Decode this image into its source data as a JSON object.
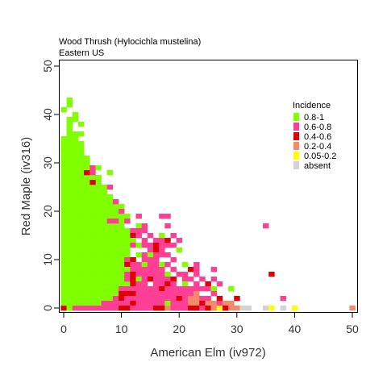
{
  "chart_data": {
    "type": "heatmap",
    "title": "Wood Thrush  (Hylocichla mustelina)",
    "subtitle": "Eastern US",
    "xlabel": "American Elm (iv972)",
    "ylabel": "Red Maple (iv316)",
    "xlim": [
      0,
      50
    ],
    "ylim": [
      0,
      50
    ],
    "x_ticks": [
      0,
      10,
      20,
      30,
      40,
      50
    ],
    "y_ticks": [
      0,
      10,
      20,
      30,
      40,
      50
    ],
    "grid": false,
    "legend": {
      "title": "Incidence",
      "placement": "top-right",
      "entries": [
        {
          "label": "0.8-1",
          "color": "#7FFF00"
        },
        {
          "label": "0.6-0.8",
          "color": "#FF3E96"
        },
        {
          "label": "0.4-0.6",
          "color": "#E00000"
        },
        {
          "label": "0.2-0.4",
          "color": "#F58A6B"
        },
        {
          "label": "0.05-0.2",
          "color": "#FFFF00"
        },
        {
          "label": "absent",
          "color": "#D3D3D3"
        }
      ]
    },
    "cells": [
      [
        1,
        43,
        0
      ],
      [
        1,
        42,
        0
      ],
      [
        0,
        41,
        0
      ],
      [
        2,
        40,
        0
      ],
      [
        2,
        39,
        0
      ],
      [
        3,
        38,
        0
      ],
      [
        1,
        37,
        0
      ],
      [
        0,
        35,
        0
      ],
      [
        1,
        35,
        0
      ],
      [
        2,
        35,
        0
      ],
      [
        3,
        36,
        0
      ],
      [
        0,
        34,
        0
      ],
      [
        1,
        34,
        0
      ],
      [
        2,
        34,
        0
      ],
      [
        0,
        33,
        0
      ],
      [
        1,
        33,
        0
      ],
      [
        2,
        32,
        0
      ],
      [
        3,
        32,
        0
      ],
      [
        0,
        31,
        0
      ],
      [
        1,
        31,
        0
      ],
      [
        2,
        31,
        0
      ],
      [
        3,
        31,
        0
      ],
      [
        4,
        31,
        0
      ],
      [
        5,
        29,
        1
      ],
      [
        6,
        29,
        0
      ],
      [
        4,
        28,
        2
      ],
      [
        5,
        28,
        1
      ],
      [
        8,
        28,
        0
      ],
      [
        6,
        27,
        0
      ],
      [
        5,
        26,
        2
      ],
      [
        8,
        25,
        1
      ],
      [
        4,
        24,
        0
      ],
      [
        5,
        24,
        0
      ],
      [
        6,
        24,
        0
      ],
      [
        7,
        24,
        0
      ],
      [
        8,
        23,
        0
      ],
      [
        9,
        22,
        1
      ],
      [
        10,
        21,
        0
      ],
      [
        10,
        20,
        1
      ],
      [
        11,
        19,
        0
      ],
      [
        13,
        19,
        1
      ],
      [
        17,
        19,
        1
      ],
      [
        18,
        19,
        1
      ],
      [
        8,
        18,
        1
      ],
      [
        9,
        18,
        1
      ],
      [
        11,
        18,
        1
      ],
      [
        13,
        17,
        0
      ],
      [
        14,
        17,
        1
      ],
      [
        18,
        17,
        1
      ],
      [
        35,
        17,
        1
      ],
      [
        12,
        16,
        1
      ],
      [
        13,
        16,
        1
      ],
      [
        14,
        16,
        1
      ],
      [
        12,
        15,
        2
      ],
      [
        13,
        15,
        1
      ],
      [
        15,
        15,
        1
      ],
      [
        17,
        15,
        0
      ],
      [
        19,
        15,
        1
      ],
      [
        12,
        14,
        0
      ],
      [
        14,
        14,
        1
      ],
      [
        16,
        14,
        1
      ],
      [
        17,
        14,
        1
      ],
      [
        18,
        14,
        2
      ],
      [
        20,
        14,
        1
      ],
      [
        12,
        13,
        1
      ],
      [
        13,
        13,
        0
      ],
      [
        14,
        13,
        1
      ],
      [
        15,
        13,
        1
      ],
      [
        16,
        13,
        2
      ],
      [
        17,
        13,
        1
      ],
      [
        18,
        13,
        1
      ],
      [
        19,
        13,
        1
      ],
      [
        15,
        12,
        1
      ],
      [
        16,
        12,
        2
      ],
      [
        17,
        12,
        1
      ],
      [
        20,
        12,
        0
      ],
      [
        13,
        11,
        0
      ],
      [
        14,
        11,
        1
      ],
      [
        15,
        11,
        0
      ],
      [
        16,
        11,
        1
      ],
      [
        17,
        11,
        1
      ],
      [
        18,
        11,
        1
      ],
      [
        11,
        10,
        1
      ],
      [
        12,
        10,
        2
      ],
      [
        14,
        10,
        1
      ],
      [
        15,
        10,
        1
      ],
      [
        16,
        10,
        1
      ],
      [
        19,
        10,
        1
      ],
      [
        11,
        9,
        2
      ],
      [
        12,
        9,
        1
      ],
      [
        13,
        9,
        1
      ],
      [
        14,
        9,
        0
      ],
      [
        15,
        9,
        1
      ],
      [
        16,
        9,
        1
      ],
      [
        17,
        9,
        0
      ],
      [
        18,
        9,
        1
      ],
      [
        21,
        9,
        0
      ],
      [
        23,
        9,
        1
      ],
      [
        11,
        8,
        0
      ],
      [
        12,
        8,
        1
      ],
      [
        13,
        8,
        1
      ],
      [
        14,
        8,
        1
      ],
      [
        15,
        8,
        1
      ],
      [
        16,
        8,
        1
      ],
      [
        17,
        8,
        1
      ],
      [
        19,
        8,
        1
      ],
      [
        22,
        8,
        2
      ],
      [
        23,
        8,
        1
      ],
      [
        26,
        8,
        1
      ],
      [
        11,
        7,
        1
      ],
      [
        12,
        7,
        2
      ],
      [
        13,
        7,
        1
      ],
      [
        14,
        7,
        1
      ],
      [
        15,
        7,
        1
      ],
      [
        16,
        7,
        1
      ],
      [
        17,
        7,
        1
      ],
      [
        18,
        7,
        0
      ],
      [
        20,
        7,
        1
      ],
      [
        21,
        7,
        1
      ],
      [
        23,
        7,
        1
      ],
      [
        36,
        7,
        2
      ],
      [
        11,
        6,
        1
      ],
      [
        12,
        6,
        2
      ],
      [
        13,
        6,
        0
      ],
      [
        14,
        6,
        1
      ],
      [
        15,
        6,
        2
      ],
      [
        16,
        6,
        1
      ],
      [
        17,
        6,
        1
      ],
      [
        18,
        6,
        1
      ],
      [
        19,
        6,
        2
      ],
      [
        21,
        6,
        1
      ],
      [
        22,
        6,
        1
      ],
      [
        24,
        6,
        1
      ],
      [
        26,
        6,
        1
      ],
      [
        12,
        5,
        2
      ],
      [
        13,
        5,
        1
      ],
      [
        14,
        5,
        1
      ],
      [
        16,
        5,
        1
      ],
      [
        17,
        5,
        1
      ],
      [
        18,
        5,
        2
      ],
      [
        19,
        5,
        1
      ],
      [
        21,
        5,
        0
      ],
      [
        23,
        5,
        1
      ],
      [
        25,
        5,
        2
      ],
      [
        27,
        5,
        1
      ],
      [
        10,
        4,
        1
      ],
      [
        11,
        4,
        1
      ],
      [
        12,
        4,
        1
      ],
      [
        13,
        4,
        1
      ],
      [
        14,
        4,
        1
      ],
      [
        15,
        4,
        1
      ],
      [
        16,
        4,
        1
      ],
      [
        17,
        4,
        2
      ],
      [
        18,
        4,
        1
      ],
      [
        19,
        4,
        1
      ],
      [
        20,
        4,
        1
      ],
      [
        21,
        4,
        1
      ],
      [
        22,
        4,
        1
      ],
      [
        23,
        4,
        1
      ],
      [
        24,
        4,
        1
      ],
      [
        25,
        4,
        1
      ],
      [
        26,
        4,
        0
      ],
      [
        29,
        4,
        0
      ],
      [
        10,
        3,
        2
      ],
      [
        11,
        3,
        2
      ],
      [
        12,
        3,
        2
      ],
      [
        13,
        3,
        1
      ],
      [
        14,
        3,
        1
      ],
      [
        15,
        3,
        1
      ],
      [
        16,
        3,
        1
      ],
      [
        17,
        3,
        1
      ],
      [
        18,
        3,
        1
      ],
      [
        19,
        3,
        1
      ],
      [
        20,
        3,
        1
      ],
      [
        21,
        3,
        1
      ],
      [
        22,
        3,
        1
      ],
      [
        23,
        3,
        3
      ],
      [
        26,
        3,
        1
      ],
      [
        9,
        2,
        1
      ],
      [
        10,
        2,
        2
      ],
      [
        11,
        2,
        1
      ],
      [
        12,
        2,
        1
      ],
      [
        13,
        2,
        1
      ],
      [
        14,
        2,
        1
      ],
      [
        15,
        2,
        1
      ],
      [
        16,
        2,
        1
      ],
      [
        17,
        2,
        1
      ],
      [
        18,
        2,
        1
      ],
      [
        19,
        2,
        1
      ],
      [
        20,
        2,
        2
      ],
      [
        21,
        2,
        1
      ],
      [
        22,
        2,
        3
      ],
      [
        23,
        2,
        3
      ],
      [
        24,
        2,
        1
      ],
      [
        25,
        2,
        1
      ],
      [
        27,
        2,
        2
      ],
      [
        30,
        2,
        2
      ],
      [
        38,
        2,
        1
      ],
      [
        7,
        1,
        1
      ],
      [
        8,
        1,
        1
      ],
      [
        9,
        1,
        1
      ],
      [
        10,
        1,
        1
      ],
      [
        11,
        1,
        1
      ],
      [
        12,
        1,
        2
      ],
      [
        13,
        1,
        1
      ],
      [
        14,
        1,
        1
      ],
      [
        15,
        1,
        1
      ],
      [
        16,
        1,
        1
      ],
      [
        17,
        1,
        1
      ],
      [
        18,
        1,
        0
      ],
      [
        19,
        1,
        1
      ],
      [
        20,
        1,
        1
      ],
      [
        21,
        1,
        1
      ],
      [
        22,
        1,
        3
      ],
      [
        23,
        1,
        3
      ],
      [
        24,
        1,
        2
      ],
      [
        25,
        1,
        3
      ],
      [
        26,
        1,
        3
      ],
      [
        27,
        1,
        1
      ],
      [
        28,
        1,
        3
      ],
      [
        29,
        1,
        3
      ],
      [
        0,
        0,
        2
      ],
      [
        1,
        0,
        0
      ],
      [
        2,
        0,
        1
      ],
      [
        3,
        0,
        1
      ],
      [
        4,
        0,
        1
      ],
      [
        5,
        0,
        1
      ],
      [
        6,
        0,
        1
      ],
      [
        7,
        0,
        1
      ],
      [
        8,
        0,
        1
      ],
      [
        9,
        0,
        1
      ],
      [
        10,
        0,
        2
      ],
      [
        11,
        0,
        2
      ],
      [
        12,
        0,
        1
      ],
      [
        13,
        0,
        1
      ],
      [
        14,
        0,
        1
      ],
      [
        15,
        0,
        1
      ],
      [
        16,
        0,
        2
      ],
      [
        17,
        0,
        2
      ],
      [
        18,
        0,
        3
      ],
      [
        19,
        0,
        1
      ],
      [
        20,
        0,
        1
      ],
      [
        21,
        0,
        1
      ],
      [
        22,
        0,
        2
      ],
      [
        23,
        0,
        2
      ],
      [
        24,
        0,
        1
      ],
      [
        25,
        0,
        2
      ],
      [
        26,
        0,
        3
      ],
      [
        27,
        0,
        4
      ],
      [
        28,
        0,
        2
      ],
      [
        29,
        0,
        3
      ],
      [
        30,
        0,
        3
      ],
      [
        31,
        0,
        5
      ],
      [
        32,
        0,
        5
      ],
      [
        35,
        0,
        5
      ],
      [
        36,
        0,
        4
      ],
      [
        38,
        0,
        5
      ],
      [
        40,
        0,
        4
      ],
      [
        50,
        0,
        3
      ]
    ],
    "green_region_top": [
      34,
      39,
      36,
      34,
      31,
      29,
      27,
      25,
      23,
      21,
      19,
      16
    ],
    "green_region_top_note": ""
  }
}
